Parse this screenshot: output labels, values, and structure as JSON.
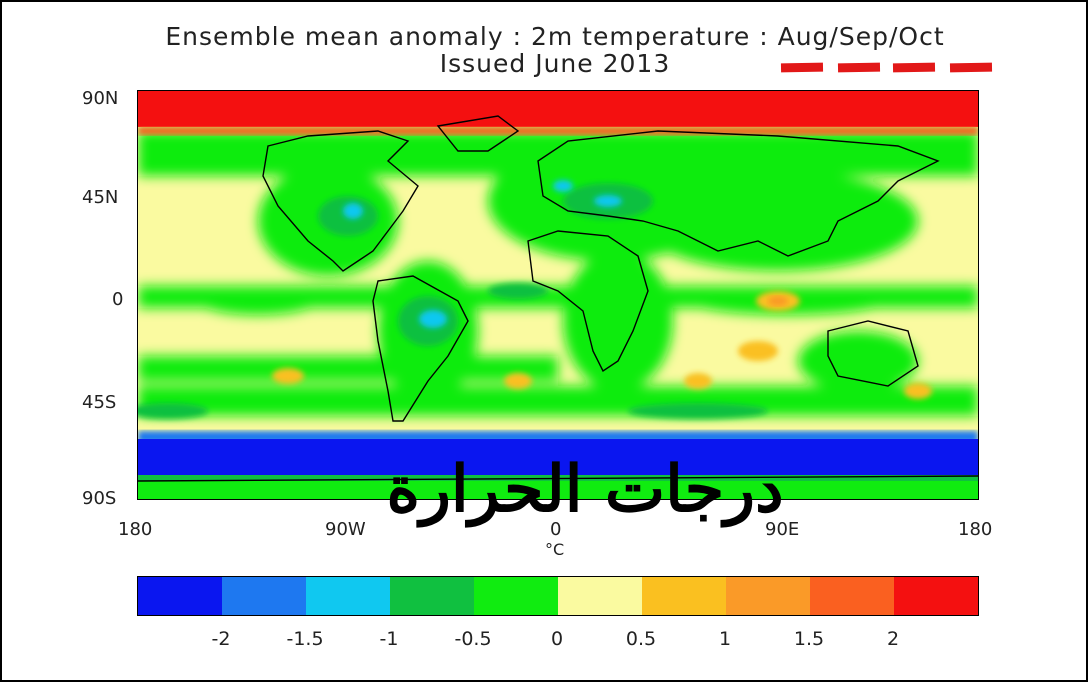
{
  "header": {
    "title": "Ensemble mean anomaly : 2m temperature : Aug/Sep/Oct",
    "subtitle": "Issued June 2013"
  },
  "map": {
    "lat_labels": [
      "90N",
      "45N",
      "0",
      "45S",
      "90S"
    ],
    "lon_labels": [
      "180",
      "90W",
      "0",
      "90E",
      "180"
    ],
    "unit": "°C"
  },
  "colorbar": {
    "labels": [
      "-2",
      "-1.5",
      "-1",
      "-0.5",
      "0",
      "0.5",
      "1",
      "1.5",
      "2"
    ],
    "colors": [
      "#0a16f0",
      "#1e78f0",
      "#10c8f0",
      "#10c040",
      "#10ec10",
      "#fafaa0",
      "#fac020",
      "#fa9a28",
      "#fa6020",
      "#f41010"
    ]
  },
  "overlay": {
    "arabic_caption": "درجات الحرارة"
  },
  "accent": {
    "dash_color": "#e21818"
  }
}
